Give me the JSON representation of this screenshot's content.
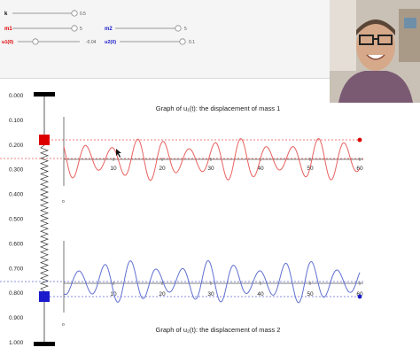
{
  "sliders": {
    "k": {
      "label": "k",
      "value": "0.5",
      "color": "#222222",
      "level": 1.0
    },
    "m1": {
      "label": "m1",
      "value": "5",
      "color": "#dd0000",
      "level": 1.0
    },
    "m2": {
      "label": "m2",
      "value": "5",
      "color": "#1a1acc",
      "level": 1.0
    },
    "u10": {
      "label": "u1(0)",
      "value": "-0.04",
      "color": "#dd0000",
      "level": 0.3
    },
    "u20": {
      "label": "u2(0)",
      "value": "0.1",
      "color": "#1a1acc",
      "level": 1.0
    }
  },
  "ruler": {
    "ticks": [
      "0.000",
      "0.100",
      "0.200",
      "0.300",
      "0.400",
      "0.500",
      "0.600",
      "0.700",
      "0.800",
      "0.900",
      "1.000"
    ]
  },
  "graph1": {
    "title": "Graph of u₁(t): the displacement of mass 1",
    "xticks": [
      "10",
      "20",
      "30",
      "40",
      "50",
      "60"
    ],
    "origin_label": "o"
  },
  "graph2": {
    "title": "Graph of u₂(t): the displacement of mass 2",
    "xticks": [
      "10",
      "20",
      "30",
      "40",
      "50",
      "60"
    ],
    "origin_label": "o"
  },
  "colors": {
    "mass1": "#dd0000",
    "mass2": "#1a1acc",
    "curve1": "#e86060",
    "curve2": "#6070d0"
  }
}
